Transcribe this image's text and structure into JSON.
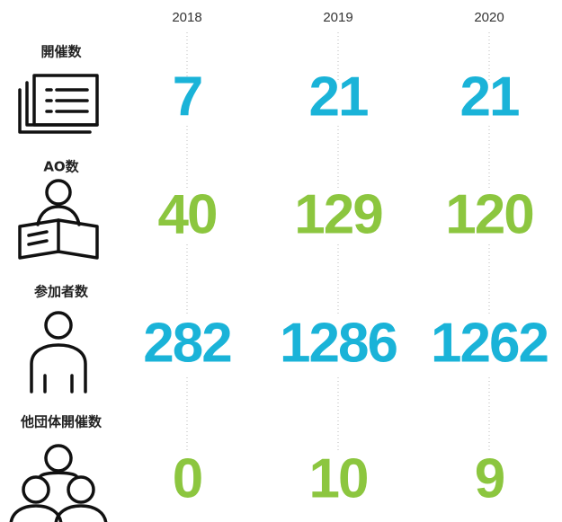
{
  "years": [
    "2018",
    "2019",
    "2020"
  ],
  "rows": [
    {
      "label": "開催数",
      "values": [
        7,
        21,
        21
      ],
      "color": "#1ab3d8"
    },
    {
      "label": "AO数",
      "values": [
        40,
        129,
        120
      ],
      "color": "#8cc63f"
    },
    {
      "label": "参加者数",
      "values": [
        282,
        1286,
        1262
      ],
      "color": "#1ab3d8"
    },
    {
      "label": "他団体開催数",
      "values": [
        0,
        10,
        9
      ],
      "color": "#8cc63f"
    }
  ]
}
